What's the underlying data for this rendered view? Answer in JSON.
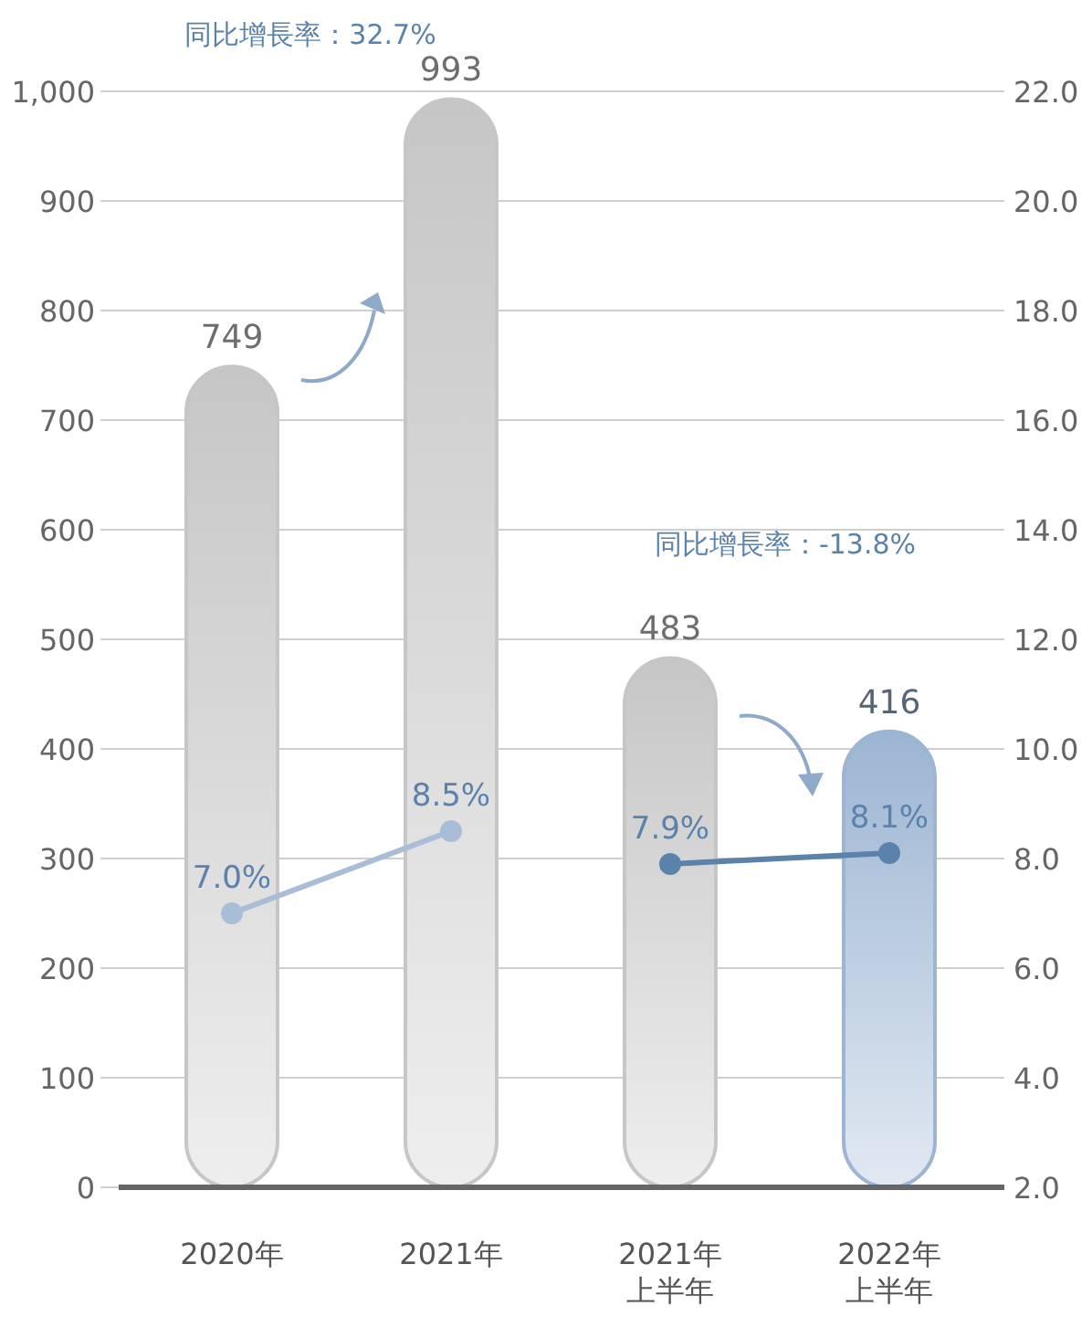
{
  "chart_data": {
    "type": "bar",
    "categories": [
      "2020年",
      "2021年",
      "2021年上半年",
      "2022年上半年"
    ],
    "series": [
      {
        "colors": [
          "#c6c6c6",
          "#c6c6c6",
          "#c6c6c6",
          "#9cb5d2"
        ],
        "values": [
          749,
          993,
          483,
          416
        ],
        "value_labels": [
          "749",
          "993",
          "483",
          "416"
        ]
      },
      {
        "type": "line",
        "axis": "y2",
        "color": "#a9bdd6",
        "values": [
          7.0,
          8.5,
          null,
          null
        ],
        "value_labels": [
          "7.0%",
          "8.5%",
          null,
          null
        ]
      },
      {
        "type": "line",
        "axis": "y2",
        "color": "#5a82aa",
        "values": [
          null,
          null,
          7.9,
          8.1
        ],
        "value_labels": [
          null,
          null,
          "7.9%",
          "8.1%"
        ]
      }
    ],
    "ylim": [
      0,
      1000
    ],
    "yticks": [
      0,
      100,
      200,
      300,
      400,
      500,
      600,
      700,
      800,
      900,
      {
        "value": 1000,
        "label": "1,000"
      }
    ],
    "y2lim": [
      2,
      22
    ],
    "y2ticks": [
      {
        "value": 2,
        "label": "2.0"
      },
      {
        "value": 4,
        "label": "4.0"
      },
      {
        "value": 6,
        "label": "6.0"
      },
      {
        "value": 8,
        "label": "8.0"
      },
      {
        "value": 10,
        "label": "10.0"
      },
      {
        "value": 12,
        "label": "12.0"
      },
      {
        "value": 14,
        "label": "14.0"
      },
      {
        "value": 16,
        "label": "16.0"
      },
      {
        "value": 18,
        "label": "18.0"
      },
      {
        "value": 20,
        "label": "20.0"
      },
      {
        "value": 22,
        "label": "22.0"
      }
    ],
    "grid": "y",
    "marker": "circle",
    "annotations": [
      "同比增長率：32.7%",
      "同比增長率：-13.8%"
    ]
  }
}
